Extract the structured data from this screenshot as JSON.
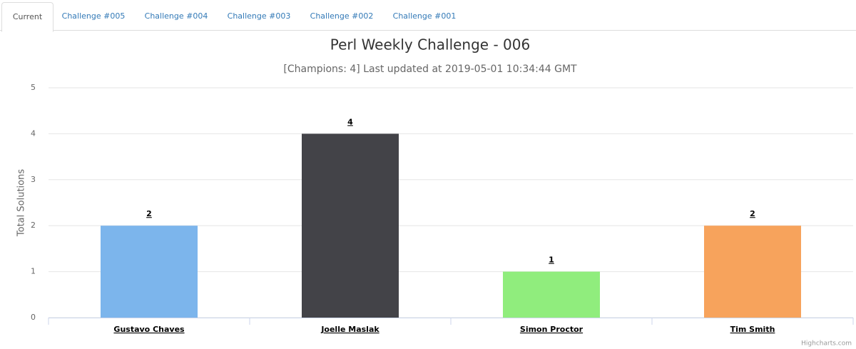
{
  "tabs": [
    "Current",
    "Challenge #005",
    "Challenge #004",
    "Challenge #003",
    "Challenge #002",
    "Challenge #001"
  ],
  "chart_data": {
    "type": "bar",
    "title": "Perl Weekly Challenge - 006",
    "subtitle": "[Champions: 4] Last updated at 2019-05-01 10:34:44 GMT",
    "y_label": "Total Solutions",
    "categories": [
      "Gustavo Chaves",
      "Joelle Maslak",
      "Simon Proctor",
      "Tim Smith"
    ],
    "values": [
      2,
      4,
      1,
      2
    ],
    "colors": [
      "#7cb5ec",
      "#434348",
      "#90ed7d",
      "#f7a35c"
    ],
    "ylim": [
      0,
      5
    ],
    "yticks": [
      0,
      1,
      2,
      3,
      4,
      5
    ],
    "grid": true,
    "credits": "Highcharts.com"
  }
}
